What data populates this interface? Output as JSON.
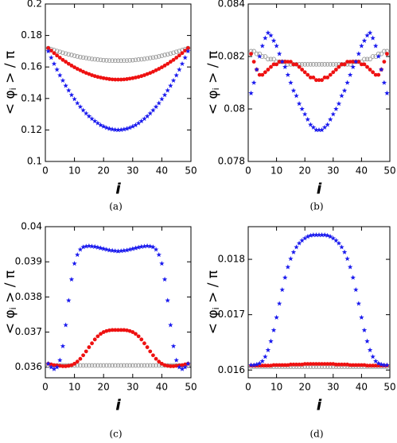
{
  "chart_data": [
    {
      "type": "scatter",
      "caption": "(a)",
      "x_label": "i",
      "y_label": [
        "< φ",
        "i",
        " > / π"
      ],
      "xlim": [
        0,
        50
      ],
      "xticks": [
        0,
        10,
        20,
        30,
        40,
        50
      ],
      "ylim": [
        0.1,
        0.2
      ],
      "yticks": [
        0.1,
        0.12,
        0.14,
        0.16,
        0.18,
        0.2
      ],
      "x": [
        1,
        2,
        3,
        4,
        5,
        6,
        7,
        8,
        9,
        10,
        11,
        12,
        13,
        14,
        15,
        16,
        17,
        18,
        19,
        20,
        21,
        22,
        23,
        24,
        25,
        26,
        27,
        28,
        29,
        30,
        31,
        32,
        33,
        34,
        35,
        36,
        37,
        38,
        39,
        40,
        41,
        42,
        43,
        44,
        45,
        46,
        47,
        48,
        49
      ],
      "series": [
        {
          "marker": "open-circle",
          "color": "#999999",
          "values": [
            0.172,
            0.1713,
            0.1707,
            0.1701,
            0.1696,
            0.169,
            0.1685,
            0.168,
            0.1676,
            0.1671,
            0.1667,
            0.1663,
            0.166,
            0.1657,
            0.1654,
            0.1651,
            0.1649,
            0.1647,
            0.1645,
            0.1643,
            0.1642,
            0.1641,
            0.1641,
            0.164,
            0.164,
            0.164,
            0.1641,
            0.1641,
            0.1642,
            0.1643,
            0.1645,
            0.1647,
            0.1649,
            0.1651,
            0.1654,
            0.1657,
            0.166,
            0.1663,
            0.1667,
            0.1671,
            0.1676,
            0.168,
            0.1685,
            0.169,
            0.1696,
            0.1701,
            0.1707,
            0.1713,
            0.172
          ]
        },
        {
          "marker": "circle",
          "color": "#ee1111",
          "values": [
            0.172,
            0.1704,
            0.1688,
            0.1673,
            0.1659,
            0.1645,
            0.1633,
            0.162,
            0.1609,
            0.1598,
            0.1588,
            0.1579,
            0.157,
            0.1562,
            0.1555,
            0.1548,
            0.1542,
            0.1537,
            0.1533,
            0.1529,
            0.1526,
            0.1523,
            0.1521,
            0.152,
            0.152,
            0.152,
            0.1521,
            0.1523,
            0.1526,
            0.1529,
            0.1533,
            0.1537,
            0.1542,
            0.1548,
            0.1555,
            0.1562,
            0.157,
            0.1579,
            0.1588,
            0.1598,
            0.1609,
            0.162,
            0.1633,
            0.1645,
            0.1659,
            0.1673,
            0.1688,
            0.1704,
            0.172
          ]
        },
        {
          "marker": "star",
          "color": "#1a1aee",
          "values": [
            0.17,
            0.1659,
            0.162,
            0.1583,
            0.1547,
            0.1514,
            0.1481,
            0.1451,
            0.1422,
            0.1396,
            0.137,
            0.1347,
            0.1325,
            0.1305,
            0.1287,
            0.1271,
            0.1256,
            0.1243,
            0.1231,
            0.1222,
            0.1214,
            0.1208,
            0.1204,
            0.1201,
            0.12,
            0.1201,
            0.1204,
            0.1208,
            0.1214,
            0.1222,
            0.1231,
            0.1243,
            0.1256,
            0.1271,
            0.1287,
            0.1305,
            0.1325,
            0.1347,
            0.137,
            0.1396,
            0.1422,
            0.1451,
            0.1481,
            0.1514,
            0.1547,
            0.1583,
            0.162,
            0.1659,
            0.17
          ]
        }
      ]
    },
    {
      "type": "scatter",
      "caption": "(b)",
      "x_label": "i",
      "y_label": [
        "< φ",
        "i",
        " > / π"
      ],
      "xlim": [
        0,
        50
      ],
      "xticks": [
        0,
        10,
        20,
        30,
        40,
        50
      ],
      "ylim": [
        0.078,
        0.084
      ],
      "yticks": [
        0.078,
        0.08,
        0.082,
        0.084
      ],
      "x": [
        1,
        2,
        3,
        4,
        5,
        6,
        7,
        8,
        9,
        10,
        11,
        12,
        13,
        14,
        15,
        16,
        17,
        18,
        19,
        20,
        21,
        22,
        23,
        24,
        25,
        26,
        27,
        28,
        29,
        30,
        31,
        32,
        33,
        34,
        35,
        36,
        37,
        38,
        39,
        40,
        41,
        42,
        43,
        44,
        45,
        46,
        47,
        48,
        49
      ],
      "series": [
        {
          "marker": "open-circle",
          "color": "#999999",
          "values": [
            0.0822,
            0.0822,
            0.0821,
            0.0821,
            0.082,
            0.082,
            0.0819,
            0.0819,
            0.0819,
            0.0818,
            0.0818,
            0.0818,
            0.0818,
            0.0817,
            0.0817,
            0.0817,
            0.0817,
            0.0817,
            0.0817,
            0.0817,
            0.0817,
            0.0817,
            0.0817,
            0.0817,
            0.0817,
            0.0817,
            0.0817,
            0.0817,
            0.0817,
            0.0817,
            0.0817,
            0.0817,
            0.0817,
            0.0817,
            0.0817,
            0.0817,
            0.0818,
            0.0818,
            0.0818,
            0.0818,
            0.0819,
            0.0819,
            0.0819,
            0.082,
            0.082,
            0.0821,
            0.0821,
            0.0822,
            0.0822
          ]
        },
        {
          "marker": "circle",
          "color": "#ee1111",
          "values": [
            0.0821,
            0.0818,
            0.0815,
            0.0813,
            0.0813,
            0.0814,
            0.0815,
            0.0816,
            0.0817,
            0.0817,
            0.0818,
            0.0818,
            0.0818,
            0.0818,
            0.0818,
            0.0817,
            0.0817,
            0.0816,
            0.0815,
            0.0814,
            0.0813,
            0.0812,
            0.0812,
            0.0811,
            0.0811,
            0.0811,
            0.0812,
            0.0812,
            0.0813,
            0.0814,
            0.0815,
            0.0816,
            0.0817,
            0.0817,
            0.0818,
            0.0818,
            0.0818,
            0.0818,
            0.0818,
            0.0817,
            0.0817,
            0.0816,
            0.0815,
            0.0814,
            0.0813,
            0.0813,
            0.0815,
            0.0818,
            0.0821
          ]
        },
        {
          "marker": "star",
          "color": "#1a1aee",
          "values": [
            0.0806,
            0.081,
            0.0815,
            0.082,
            0.0824,
            0.0827,
            0.0829,
            0.0828,
            0.0826,
            0.0824,
            0.0821,
            0.0818,
            0.0816,
            0.0813,
            0.081,
            0.0807,
            0.0805,
            0.0802,
            0.08,
            0.0798,
            0.0796,
            0.0794,
            0.0793,
            0.0792,
            0.0792,
            0.0792,
            0.0793,
            0.0794,
            0.0796,
            0.0798,
            0.08,
            0.0802,
            0.0805,
            0.0807,
            0.081,
            0.0813,
            0.0816,
            0.0818,
            0.0821,
            0.0824,
            0.0826,
            0.0828,
            0.0829,
            0.0827,
            0.0824,
            0.082,
            0.0815,
            0.081,
            0.0806
          ]
        }
      ]
    },
    {
      "type": "scatter",
      "caption": "(c)",
      "x_label": "i",
      "y_label": [
        "< φ",
        "i",
        " > / π"
      ],
      "xlim": [
        0,
        50
      ],
      "xticks": [
        0,
        10,
        20,
        30,
        40,
        50
      ],
      "ylim": [
        0.0357,
        0.04
      ],
      "yticks": [
        0.036,
        0.037,
        0.038,
        0.039,
        0.04
      ],
      "x": [
        1,
        2,
        3,
        4,
        5,
        6,
        7,
        8,
        9,
        10,
        11,
        12,
        13,
        14,
        15,
        16,
        17,
        18,
        19,
        20,
        21,
        22,
        23,
        24,
        25,
        26,
        27,
        28,
        29,
        30,
        31,
        32,
        33,
        34,
        35,
        36,
        37,
        38,
        39,
        40,
        41,
        42,
        43,
        44,
        45,
        46,
        47,
        48,
        49
      ],
      "series": [
        {
          "marker": "open-circle",
          "color": "#999999",
          "values": [
            0.03605,
            0.03605,
            0.03605,
            0.03605,
            0.03605,
            0.03605,
            0.03605,
            0.03605,
            0.03605,
            0.03605,
            0.03605,
            0.03605,
            0.03605,
            0.03605,
            0.03605,
            0.03605,
            0.03605,
            0.03605,
            0.03605,
            0.03605,
            0.03605,
            0.03605,
            0.03605,
            0.03605,
            0.03605,
            0.03605,
            0.03605,
            0.03605,
            0.03605,
            0.03605,
            0.03605,
            0.03605,
            0.03605,
            0.03605,
            0.03605,
            0.03605,
            0.03605,
            0.03605,
            0.03605,
            0.03605,
            0.03605,
            0.03605,
            0.03605,
            0.03605,
            0.03605,
            0.03605,
            0.03605,
            0.03605,
            0.03605
          ]
        },
        {
          "marker": "circle",
          "color": "#ee1111",
          "values": [
            0.0361,
            0.03608,
            0.03606,
            0.03605,
            0.03604,
            0.03603,
            0.03603,
            0.03604,
            0.03606,
            0.0361,
            0.03616,
            0.03624,
            0.03634,
            0.03645,
            0.03657,
            0.03668,
            0.03679,
            0.03688,
            0.03695,
            0.037,
            0.03703,
            0.03705,
            0.03706,
            0.03706,
            0.03706,
            0.03706,
            0.03706,
            0.03705,
            0.03703,
            0.037,
            0.03695,
            0.03688,
            0.03679,
            0.03668,
            0.03657,
            0.03645,
            0.03634,
            0.03624,
            0.03616,
            0.0361,
            0.03606,
            0.03604,
            0.03603,
            0.03603,
            0.03604,
            0.03605,
            0.03606,
            0.03608,
            0.0361
          ]
        },
        {
          "marker": "star",
          "color": "#1a1aee",
          "values": [
            0.0361,
            0.036,
            0.03595,
            0.036,
            0.0362,
            0.0366,
            0.0372,
            0.0379,
            0.0385,
            0.03895,
            0.0392,
            0.03935,
            0.03942,
            0.03944,
            0.03945,
            0.03944,
            0.03943,
            0.03941,
            0.03939,
            0.03937,
            0.03935,
            0.03933,
            0.03932,
            0.03931,
            0.0393,
            0.03931,
            0.03932,
            0.03933,
            0.03935,
            0.03937,
            0.03939,
            0.03941,
            0.03943,
            0.03944,
            0.03945,
            0.03944,
            0.03942,
            0.03935,
            0.0392,
            0.03895,
            0.0385,
            0.0379,
            0.0372,
            0.0366,
            0.0362,
            0.036,
            0.03595,
            0.036,
            0.0361
          ]
        }
      ]
    },
    {
      "type": "scatter",
      "caption": "(d)",
      "x_label": "i",
      "y_label": [
        "< φ",
        "i",
        " > / π"
      ],
      "xlim": [
        0,
        50
      ],
      "xticks": [
        0,
        10,
        20,
        30,
        40,
        50
      ],
      "ylim": [
        0.01586,
        0.01859
      ],
      "yticks": [
        0.016,
        0.017,
        0.018
      ],
      "x": [
        1,
        2,
        3,
        4,
        5,
        6,
        7,
        8,
        9,
        10,
        11,
        12,
        13,
        14,
        15,
        16,
        17,
        18,
        19,
        20,
        21,
        22,
        23,
        24,
        25,
        26,
        27,
        28,
        29,
        30,
        31,
        32,
        33,
        34,
        35,
        36,
        37,
        38,
        39,
        40,
        41,
        42,
        43,
        44,
        45,
        46,
        47,
        48,
        49
      ],
      "series": [
        {
          "marker": "open-circle",
          "color": "#999999",
          "values": [
            0.01606,
            0.01606,
            0.01606,
            0.01606,
            0.01606,
            0.01606,
            0.01606,
            0.01606,
            0.01606,
            0.01606,
            0.01606,
            0.01606,
            0.01606,
            0.01606,
            0.01606,
            0.01606,
            0.01606,
            0.01606,
            0.01606,
            0.01606,
            0.01606,
            0.01606,
            0.01606,
            0.01606,
            0.01606,
            0.01606,
            0.01606,
            0.01606,
            0.01606,
            0.01606,
            0.01606,
            0.01606,
            0.01606,
            0.01606,
            0.01606,
            0.01606,
            0.01606,
            0.01606,
            0.01606,
            0.01606,
            0.01606,
            0.01606,
            0.01606,
            0.01606,
            0.01606,
            0.01606,
            0.01606,
            0.01606,
            0.01606
          ]
        },
        {
          "marker": "circle",
          "color": "#ee1111",
          "values": [
            0.01608,
            0.01608,
            0.01608,
            0.01608,
            0.01608,
            0.01608,
            0.01608,
            0.01608,
            0.01609,
            0.01609,
            0.01609,
            0.01609,
            0.01609,
            0.01609,
            0.0161,
            0.0161,
            0.0161,
            0.0161,
            0.0161,
            0.01611,
            0.01611,
            0.01611,
            0.01611,
            0.01611,
            0.01611,
            0.01611,
            0.01611,
            0.01611,
            0.01611,
            0.01611,
            0.0161,
            0.0161,
            0.0161,
            0.0161,
            0.0161,
            0.01609,
            0.01609,
            0.01609,
            0.01609,
            0.01609,
            0.01609,
            0.01608,
            0.01608,
            0.01608,
            0.01608,
            0.01608,
            0.01608,
            0.01608,
            0.01608
          ]
        },
        {
          "marker": "star",
          "color": "#1a1aee",
          "values": [
            0.01609,
            0.01609,
            0.0161,
            0.01612,
            0.01616,
            0.01624,
            0.01636,
            0.01652,
            0.01672,
            0.01695,
            0.0172,
            0.01745,
            0.01767,
            0.01786,
            0.01801,
            0.01813,
            0.01822,
            0.01829,
            0.01834,
            0.01838,
            0.01841,
            0.01843,
            0.01844,
            0.01844,
            0.01844,
            0.01844,
            0.01844,
            0.01843,
            0.01841,
            0.01838,
            0.01834,
            0.01829,
            0.01822,
            0.01813,
            0.01801,
            0.01786,
            0.01767,
            0.01745,
            0.0172,
            0.01695,
            0.01672,
            0.01652,
            0.01636,
            0.01624,
            0.01616,
            0.01612,
            0.0161,
            0.01609,
            0.01609
          ]
        }
      ]
    }
  ]
}
